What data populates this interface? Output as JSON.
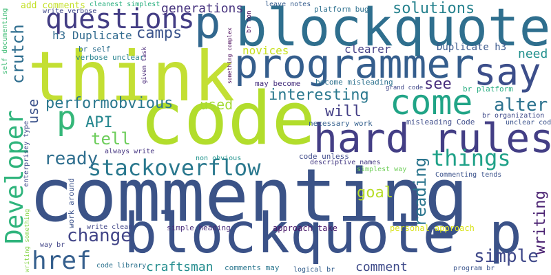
{
  "word_cloud": {
    "words": [
      {
        "text": "commenting",
        "color": "#3b5387"
      },
      {
        "text": "code",
        "color": "#b2dd2c"
      },
      {
        "text": "think",
        "color": "#c3df33"
      },
      {
        "text": "blockquote",
        "color": "#2f6f8e"
      },
      {
        "text": "blockquote p",
        "color": "#3b5288"
      },
      {
        "text": "programmer",
        "color": "#355e8d"
      },
      {
        "text": "hard rules",
        "color": "#433e85"
      },
      {
        "text": "p",
        "color": "#31678e"
      },
      {
        "text": "say",
        "color": "#3c4e8a"
      },
      {
        "text": "come",
        "color": "#20a486"
      },
      {
        "text": "questions",
        "color": "#433d84"
      },
      {
        "text": "Developer",
        "color": "#2fb47c"
      },
      {
        "text": "stackoverflow",
        "color": "#2a788e"
      },
      {
        "text": "p",
        "color": "#35b779"
      },
      {
        "text": "href",
        "color": "#355f8d"
      },
      {
        "text": "things",
        "color": "#1fa188"
      },
      {
        "text": "performobvious",
        "color": "#2a778e"
      },
      {
        "text": "API",
        "color": "#24868e"
      },
      {
        "text": "tell",
        "color": "#6ccd5a"
      },
      {
        "text": "ready",
        "color": "#2e6e8e"
      },
      {
        "text": "change",
        "color": "#414487"
      },
      {
        "text": "alter",
        "color": "#2c728e"
      },
      {
        "text": "writing",
        "color": "#481f70"
      },
      {
        "text": "simple",
        "color": "#3f4889"
      },
      {
        "text": "reading",
        "color": "#2b758e"
      },
      {
        "text": "crutch",
        "color": "#2e6d8e"
      },
      {
        "text": "camps",
        "color": "#3a538b"
      },
      {
        "text": "solutions",
        "color": "#26828e"
      },
      {
        "text": "generations",
        "color": "#46327e"
      },
      {
        "text": "interesting",
        "color": "#2a788e"
      },
      {
        "text": "will",
        "color": "#433e85"
      },
      {
        "text": "see",
        "color": "#472d7b"
      },
      {
        "text": "used",
        "color": "#a5db36"
      },
      {
        "text": "use",
        "color": "#3b528b"
      },
      {
        "text": "goal",
        "color": "#b8de29"
      },
      {
        "text": "need",
        "color": "#21908d"
      },
      {
        "text": "novices",
        "color": "#c8e020"
      },
      {
        "text": "clearer",
        "color": "#433e85"
      },
      {
        "text": "h3 Duplicate",
        "color": "#306a8e"
      },
      {
        "text": "Duplicate h3",
        "color": "#38588c"
      },
      {
        "text": "comment",
        "color": "#3e4a89"
      },
      {
        "text": "craftsman",
        "color": "#228c8d"
      },
      {
        "text": "add comments",
        "color": "#c2df23"
      },
      {
        "text": "cleanest simplest",
        "color": "#29af7f"
      },
      {
        "text": "write verbose",
        "color": "#3f4889"
      },
      {
        "text": "leave notes",
        "color": "#365c8d"
      },
      {
        "text": "platform bug",
        "color": "#2d708e"
      },
      {
        "text": "br self",
        "color": "#2d708e"
      },
      {
        "text": "verbose unclear",
        "color": "#26828e"
      },
      {
        "text": "br platform",
        "color": "#27ad81"
      },
      {
        "text": "br organization",
        "color": "#3e4989"
      },
      {
        "text": "unclear code",
        "color": "#3b528b"
      },
      {
        "text": "may become",
        "color": "#46307e"
      },
      {
        "text": "become misleading",
        "color": "#2c718e"
      },
      {
        "text": "grand code",
        "color": "#3f4788"
      },
      {
        "text": "necessary work",
        "color": "#34608d"
      },
      {
        "text": "misleading Code",
        "color": "#3e4c8a"
      },
      {
        "text": "code unless",
        "color": "#3e4989"
      },
      {
        "text": "descriptive names",
        "color": "#443983"
      },
      {
        "text": "non obvious",
        "color": "#20938c"
      },
      {
        "text": "always write",
        "color": "#453581"
      },
      {
        "text": "simplest way",
        "color": "#6ece58"
      },
      {
        "text": "Commenting tends",
        "color": "#3b528b"
      },
      {
        "text": "simple heading",
        "color": "#472c7a"
      },
      {
        "text": "approach take",
        "color": "#481769"
      },
      {
        "text": "personal approach",
        "color": "#d8e219"
      },
      {
        "text": "write clean",
        "color": "#404688"
      },
      {
        "text": "way br",
        "color": "#414487"
      },
      {
        "text": "code library",
        "color": "#2c728e"
      },
      {
        "text": "comments may",
        "color": "#2a768e"
      },
      {
        "text": "logical br",
        "color": "#355f8d"
      },
      {
        "text": "program br",
        "color": "#3a548c"
      },
      {
        "text": "self documenting",
        "color": "#3dbc74"
      },
      {
        "text": "enterprisey type",
        "color": "#3e4989"
      },
      {
        "text": "writing something",
        "color": "#86d549"
      },
      {
        "text": "work around",
        "color": "#3b528b"
      },
      {
        "text": "given task",
        "color": "#482878"
      },
      {
        "text": "something complex",
        "color": "#440154"
      },
      {
        "text": "br non",
        "color": "#440154"
      }
    ]
  }
}
